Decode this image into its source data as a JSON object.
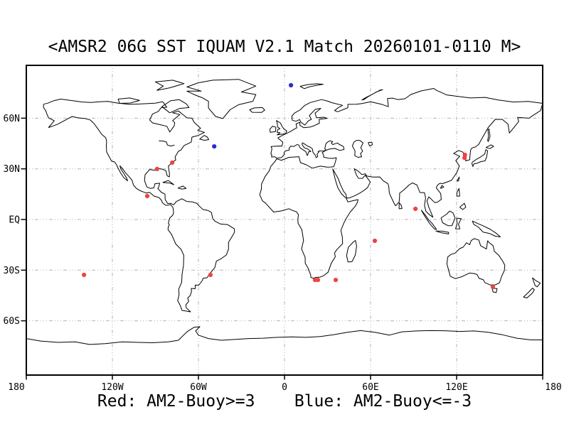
{
  "title": "<AMSR2 06G SST IQUAM V2.1 Match 20260101-0110 M>",
  "legend": {
    "red_label": "Red: AM2-Buoy>=3",
    "separator": "    ",
    "blue_label": "Blue: AM2-Buoy<=-3"
  },
  "colors": {
    "background": "#ffffff",
    "red": "#f24141",
    "blue": "#2b2bd0",
    "grid": "#b4b4b4",
    "coast": "#000000",
    "frame": "#000000"
  },
  "axes": {
    "lat_ticks": [
      {
        "label": "60N",
        "lat": 60
      },
      {
        "label": "30N",
        "lat": 30
      },
      {
        "label": "EQ",
        "lat": 0
      },
      {
        "label": "30S",
        "lat": -30
      },
      {
        "label": "60S",
        "lat": -60
      }
    ],
    "lon_ticks": [
      {
        "label": "180",
        "lon": -180
      },
      {
        "label": "120W",
        "lon": -120
      },
      {
        "label": "60W",
        "lon": -60
      },
      {
        "label": "0",
        "lon": 0
      },
      {
        "label": "60E",
        "lon": 60
      },
      {
        "label": "120E",
        "lon": 120
      },
      {
        "label": "180",
        "lon": 180
      }
    ],
    "lon_gridlines": [
      -120,
      -60,
      0,
      60,
      120
    ],
    "lat_gridlines": [
      60,
      30,
      0,
      -30,
      -60
    ]
  },
  "chart_data": {
    "type": "scatter",
    "projection": "equirectangular",
    "lon_range": [
      -180,
      180
    ],
    "lat_range": [
      -90,
      90
    ],
    "title": "<AMSR2 06G SST IQUAM V2.1 Match 20260101-0110 M>",
    "grid": "dotted",
    "series": [
      {
        "name": "AM2-Buoy>=3",
        "color_key": "red",
        "points": [
          [
            -78.3,
            33.7
          ],
          [
            -88.8,
            29.9
          ],
          [
            -95.7,
            13.9
          ],
          [
            125.8,
            38.3
          ],
          [
            125.5,
            36.5
          ],
          [
            91.3,
            6.3
          ],
          [
            63.0,
            -12.6
          ],
          [
            -139.8,
            -32.8
          ],
          [
            -51.6,
            -32.8
          ],
          [
            21.3,
            -35.8
          ],
          [
            23.3,
            -35.8
          ],
          [
            35.7,
            -35.8
          ],
          [
            145.3,
            -40.0
          ]
        ]
      },
      {
        "name": "AM2-Buoy<=-3",
        "color_key": "blue",
        "points": [
          [
            4.5,
            79.5
          ],
          [
            -49.0,
            43.3
          ]
        ]
      }
    ]
  }
}
